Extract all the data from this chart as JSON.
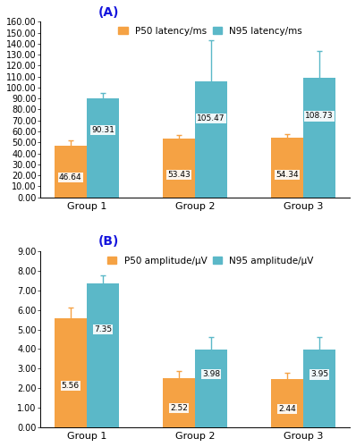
{
  "panel_A": {
    "label": "(A)",
    "groups": [
      "Group 1",
      "Group 2",
      "Group 3"
    ],
    "p50_values": [
      46.64,
      53.43,
      54.34
    ],
    "n95_values": [
      90.31,
      105.47,
      108.73
    ],
    "p50_errors": [
      5.0,
      3.5,
      3.5
    ],
    "n95_errors": [
      5.0,
      38.0,
      25.0
    ],
    "p50_color": "#F5A244",
    "n95_color": "#5BB8C8",
    "ylim": [
      0,
      160
    ],
    "yticks": [
      0,
      10,
      20,
      30,
      40,
      50,
      60,
      70,
      80,
      90,
      100,
      110,
      120,
      130,
      140,
      150,
      160
    ],
    "ytick_labels": [
      "0.00",
      "10.00",
      "20.00",
      "30.00",
      "40.00",
      "50.00",
      "60.00",
      "70.00",
      "80.00",
      "90.00",
      "100.00",
      "110.00",
      "120.00",
      "130.00",
      "140.00",
      "150.00",
      "160.00"
    ],
    "legend_p50": "P50 latency/ms",
    "legend_n95": "N95 latency/ms"
  },
  "panel_B": {
    "label": "(B)",
    "groups": [
      "Group 1",
      "Group 2",
      "Group 3"
    ],
    "p50_values": [
      5.56,
      2.52,
      2.44
    ],
    "n95_values": [
      7.35,
      3.98,
      3.95
    ],
    "p50_errors": [
      0.55,
      0.35,
      0.35
    ],
    "n95_errors": [
      0.45,
      0.65,
      0.65
    ],
    "p50_color": "#F5A244",
    "n95_color": "#5BB8C8",
    "ylim": [
      0,
      9
    ],
    "yticks": [
      0,
      1,
      2,
      3,
      4,
      5,
      6,
      7,
      8,
      9
    ],
    "ytick_labels": [
      "0.00",
      "1.00",
      "2.00",
      "3.00",
      "4.00",
      "5.00",
      "6.00",
      "7.00",
      "8.00",
      "9.00"
    ],
    "legend_p50": "P50 amplitude/μV",
    "legend_n95": "N95 amplitude/μV"
  },
  "background_color": "#ffffff",
  "label_color": "#1515dd",
  "label_fontsize": 10,
  "bar_width": 0.3,
  "value_fontsize": 6.5,
  "legend_fontsize": 7.5,
  "tick_fontsize": 7,
  "group_fontsize": 8
}
